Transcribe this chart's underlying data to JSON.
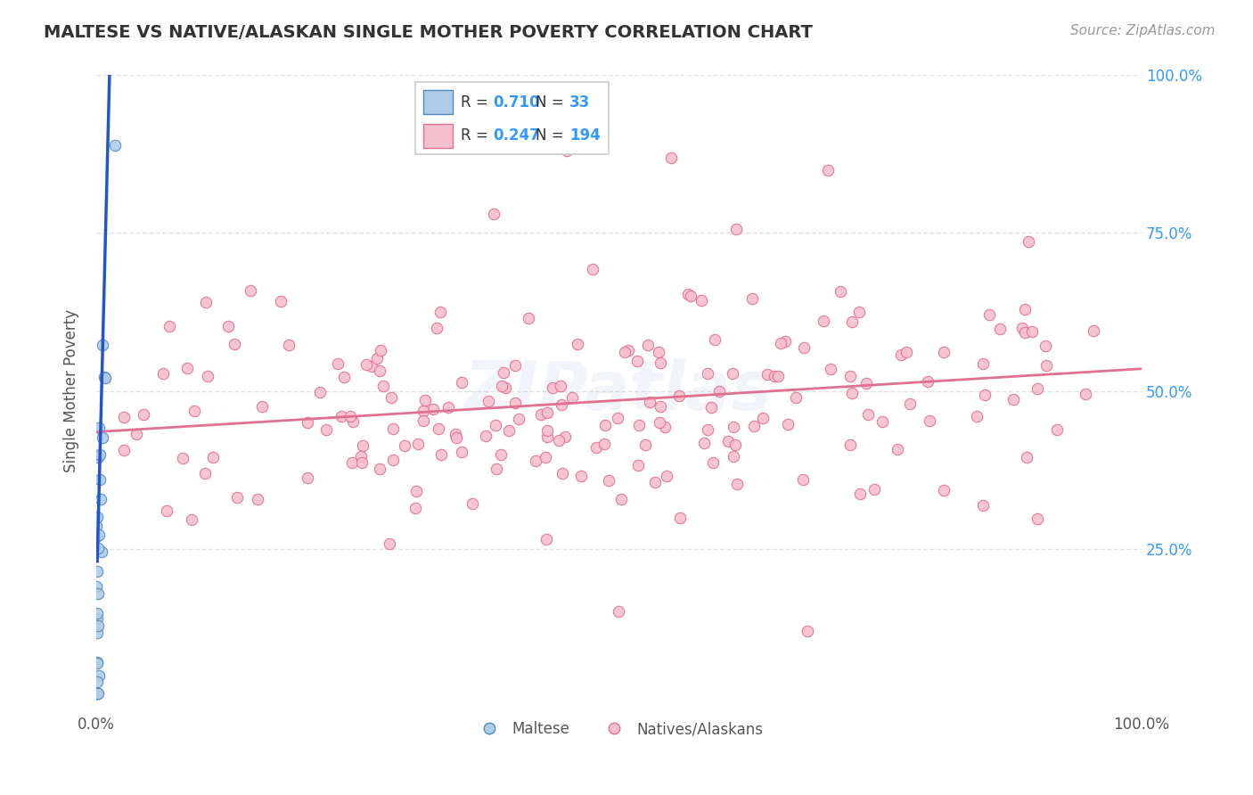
{
  "title": "MALTESE VS NATIVE/ALASKAN SINGLE MOTHER POVERTY CORRELATION CHART",
  "source_text": "Source: ZipAtlas.com",
  "ylabel": "Single Mother Poverty",
  "xlim": [
    0,
    1
  ],
  "ylim": [
    0,
    1
  ],
  "ytick_labels_right": [
    "25.0%",
    "50.0%",
    "75.0%",
    "100.0%"
  ],
  "maltese_color": "#aecce8",
  "maltese_edge_color": "#5588bb",
  "native_color": "#f5bfce",
  "native_edge_color": "#e07090",
  "blue_line_color": "#2255cc",
  "pink_line_color": "#e07090",
  "watermark_color_r": 180,
  "watermark_color_g": 200,
  "watermark_color_b": 225,
  "background_color": "#ffffff",
  "grid_color": "#dddddd",
  "title_color": "#333333",
  "axis_color": "#555555",
  "right_label_color": "#3399ff",
  "legend_text_color": "#333333",
  "legend_border_color": "#cccccc",
  "source_color": "#999999",
  "n_maltese": 33,
  "n_native": 194,
  "r_maltese": "0.710",
  "n_maltese_label": "33",
  "r_native": "0.247",
  "n_native_label": "194",
  "pink_line_x0": 0.0,
  "pink_line_y0": 0.435,
  "pink_line_x1": 1.0,
  "pink_line_y1": 0.535,
  "blue_line_x0": 0.001,
  "blue_line_y0": 0.23,
  "blue_line_x1": 0.013,
  "blue_line_y1": 1.02,
  "marker_size": 80,
  "marker_linewidth": 0.8,
  "watermark_text": "ZIPatlas",
  "watermark_fontsize": 55,
  "watermark_alpha": 0.18
}
